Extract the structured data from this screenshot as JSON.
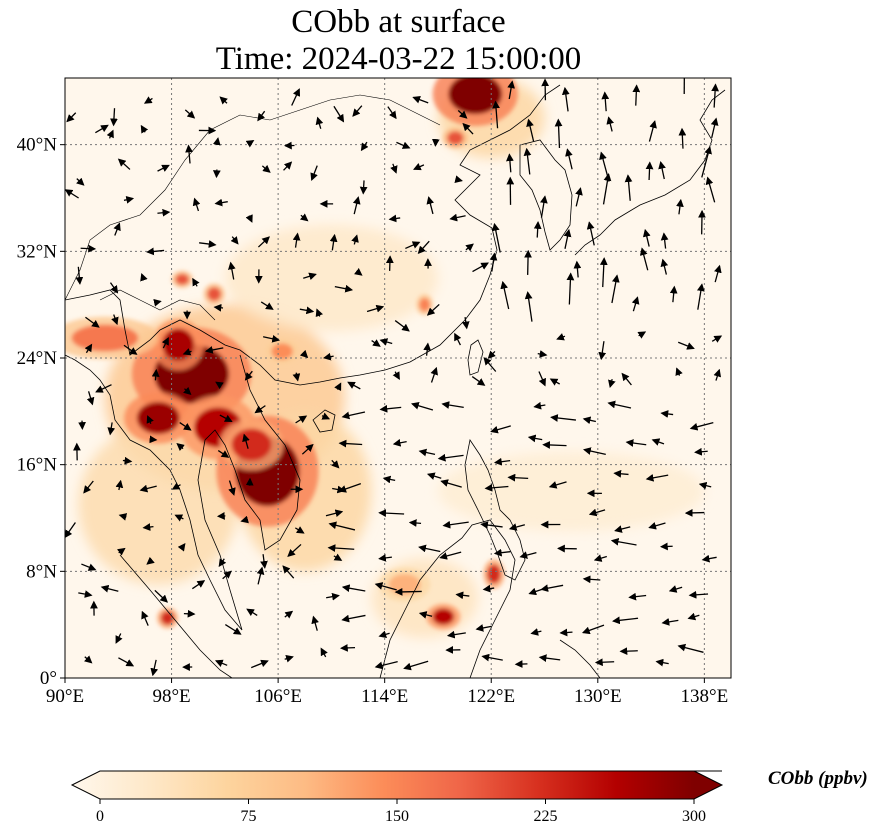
{
  "title": {
    "line1": "CObb at surface",
    "line2": "Time: 2024-03-22 15:00:00"
  },
  "map": {
    "lon_range": [
      90,
      140
    ],
    "lat_range": [
      0,
      45
    ],
    "lon_ticks": [
      {
        "value": 90,
        "label": "90°E"
      },
      {
        "value": 98,
        "label": "98°E"
      },
      {
        "value": 106,
        "label": "106°E"
      },
      {
        "value": 114,
        "label": "114°E"
      },
      {
        "value": 122,
        "label": "122°E"
      },
      {
        "value": 130,
        "label": "130°E"
      },
      {
        "value": 138,
        "label": "138°E"
      }
    ],
    "lat_ticks": [
      {
        "value": 0,
        "label": "0°"
      },
      {
        "value": 8,
        "label": "8°N"
      },
      {
        "value": 16,
        "label": "16°N"
      },
      {
        "value": 24,
        "label": "24°N"
      },
      {
        "value": 32,
        "label": "32°N"
      },
      {
        "value": 40,
        "label": "40°N"
      }
    ],
    "gridlines": true,
    "hotspots": [
      {
        "lon": 99.5,
        "lat": 22.8,
        "rx": 2.8,
        "ry": 2.2,
        "value": 300
      },
      {
        "lon": 97.0,
        "lat": 19.5,
        "rx": 1.6,
        "ry": 1.2,
        "value": 280
      },
      {
        "lon": 98.5,
        "lat": 25.0,
        "rx": 1.2,
        "ry": 1.2,
        "value": 270
      },
      {
        "lon": 101.5,
        "lat": 18.8,
        "rx": 1.8,
        "ry": 1.5,
        "value": 260
      },
      {
        "lon": 105.2,
        "lat": 15.5,
        "rx": 2.4,
        "ry": 2.6,
        "value": 300
      },
      {
        "lon": 104.0,
        "lat": 17.5,
        "rx": 1.5,
        "ry": 1.2,
        "value": 230
      },
      {
        "lon": 93.0,
        "lat": 25.5,
        "rx": 2.5,
        "ry": 1.0,
        "value": 170
      },
      {
        "lon": 120.8,
        "lat": 43.8,
        "rx": 2.0,
        "ry": 1.5,
        "value": 300
      },
      {
        "lon": 119.3,
        "lat": 40.5,
        "rx": 0.6,
        "ry": 0.5,
        "value": 200
      },
      {
        "lon": 118.4,
        "lat": 4.6,
        "rx": 0.8,
        "ry": 0.6,
        "value": 260
      },
      {
        "lon": 122.2,
        "lat": 7.8,
        "rx": 0.5,
        "ry": 0.7,
        "value": 230
      },
      {
        "lon": 97.7,
        "lat": 4.5,
        "rx": 0.5,
        "ry": 0.5,
        "value": 230
      },
      {
        "lon": 101.2,
        "lat": 28.8,
        "rx": 0.5,
        "ry": 0.5,
        "value": 200
      },
      {
        "lon": 98.8,
        "lat": 29.9,
        "rx": 0.5,
        "ry": 0.4,
        "value": 200
      },
      {
        "lon": 117.0,
        "lat": 28.0,
        "rx": 0.4,
        "ry": 0.5,
        "value": 160
      },
      {
        "lon": 106.3,
        "lat": 24.5,
        "rx": 0.8,
        "ry": 0.6,
        "value": 150
      },
      {
        "lon": 115.5,
        "lat": 7.0,
        "rx": 1.2,
        "ry": 0.8,
        "value": 120
      }
    ],
    "haze": [
      {
        "lon": 102,
        "lat": 21,
        "rx": 9,
        "ry": 7,
        "value": 90
      },
      {
        "lon": 97,
        "lat": 13,
        "rx": 6,
        "ry": 6,
        "value": 60
      },
      {
        "lon": 108,
        "lat": 14,
        "rx": 5,
        "ry": 6,
        "value": 70
      },
      {
        "lon": 117,
        "lat": 6,
        "rx": 4,
        "ry": 3,
        "value": 45
      },
      {
        "lon": 110,
        "lat": 30,
        "rx": 8,
        "ry": 4,
        "value": 35
      },
      {
        "lon": 122,
        "lat": 42,
        "rx": 4,
        "ry": 3,
        "value": 70
      },
      {
        "lon": 128,
        "lat": 14,
        "rx": 10,
        "ry": 3,
        "value": 25
      }
    ]
  },
  "colorbar": {
    "ticks": [
      {
        "value": 0,
        "label": "0"
      },
      {
        "value": 75,
        "label": "75"
      },
      {
        "value": 150,
        "label": "150"
      },
      {
        "value": 225,
        "label": "225"
      },
      {
        "value": 300,
        "label": "300"
      }
    ],
    "vmin": 0,
    "vmax": 300,
    "label": "CObb (ppbv)",
    "colormap": "OrRd",
    "stops": [
      "#fff7ec",
      "#fee8c8",
      "#fdd49e",
      "#fdbb84",
      "#fc8d59",
      "#ef6548",
      "#d7301f",
      "#b30000",
      "#7f0000"
    ],
    "extend": "both"
  }
}
